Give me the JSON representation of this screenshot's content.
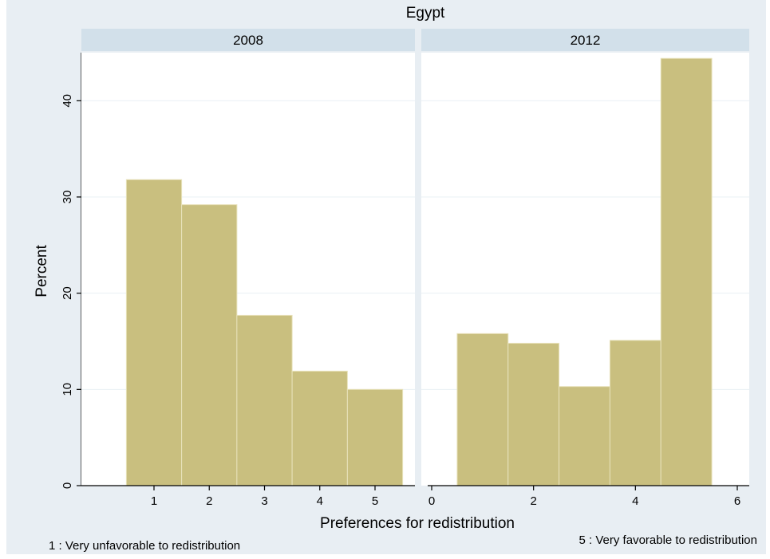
{
  "chart_data": {
    "type": "bar",
    "title": "Egypt",
    "xlabel": "Preferences for redistribution",
    "ylabel": "Percent",
    "ylim": [
      0,
      45
    ],
    "yticks": [
      0,
      10,
      20,
      30,
      40
    ],
    "bar_color": "#c9bf7f",
    "bar_edge_color": "#e8e2bb",
    "panel_background": "#ffffff",
    "figure_background": "#e8eef3",
    "strip_color": "#d2e0ea",
    "gridlines": true,
    "notes": {
      "left": "1 : Very unfavorable to redistribution",
      "right": "5 : Very favorable to redistribution"
    },
    "panels": [
      {
        "label": "2008",
        "categories": [
          1,
          2,
          3,
          4,
          5
        ],
        "values": [
          31.8,
          29.2,
          17.7,
          11.9,
          10.0
        ],
        "xlim": [
          0,
          6
        ],
        "xticks": [
          1,
          2,
          3,
          4,
          5
        ]
      },
      {
        "label": "2012",
        "categories": [
          1,
          2,
          3,
          4,
          5
        ],
        "values": [
          15.8,
          14.8,
          10.3,
          15.1,
          44.4
        ],
        "xlim": [
          0,
          6
        ],
        "xticks": [
          0,
          2,
          4,
          6
        ]
      }
    ]
  }
}
